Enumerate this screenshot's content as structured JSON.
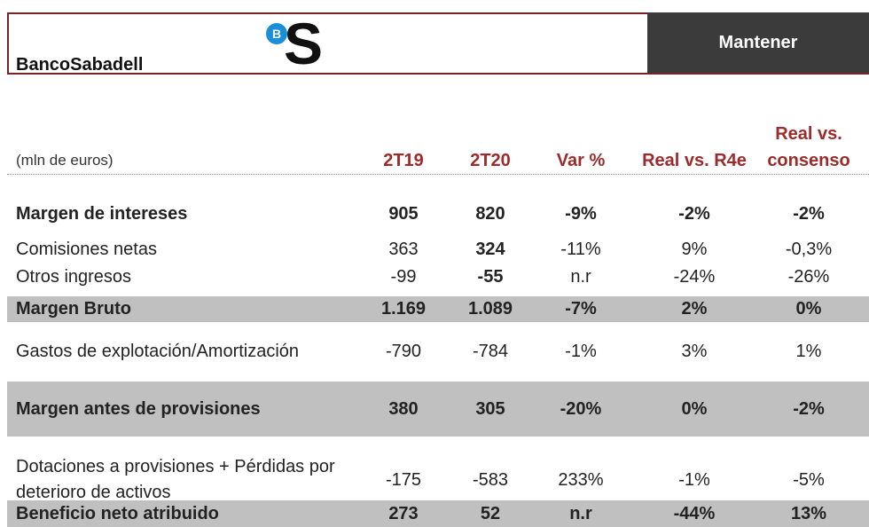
{
  "header": {
    "bank_name": "BancoSabadell",
    "logo_badge": "B",
    "logo_mark": "S",
    "rating": "Mantener"
  },
  "table": {
    "unit_label": "(mln de euros)",
    "columns": [
      "2T19",
      "2T20",
      "Var %",
      "Real vs. R4e",
      "Real vs. consenso"
    ],
    "rows": [
      [
        "Margen de intereses",
        "905",
        "820",
        "-9%",
        "-2%",
        "-2%"
      ],
      [
        "Comisiones netas",
        "363",
        "324",
        "-11%",
        "9%",
        "-0,3%"
      ],
      [
        "Otros ingresos",
        "-99",
        "-55",
        "n.r",
        "-24%",
        "-26%"
      ],
      [
        "Margen Bruto",
        "1.169",
        "1.089",
        "-7%",
        "2%",
        "0%"
      ],
      [
        "Gastos de explotación/Amortización",
        "-790",
        "-784",
        "-1%",
        "3%",
        "1%"
      ],
      [
        "Margen antes de provisiones",
        "380",
        "305",
        "-20%",
        "0%",
        "-2%"
      ],
      [
        "Dotaciones a provisiones + Pérdidas por deterioro de activos",
        "-175",
        "-583",
        "233%",
        "-1%",
        "-5%"
      ],
      [
        "Beneficio neto atribuido",
        "273",
        "52",
        "n.r",
        "-44%",
        "13%"
      ]
    ]
  }
}
